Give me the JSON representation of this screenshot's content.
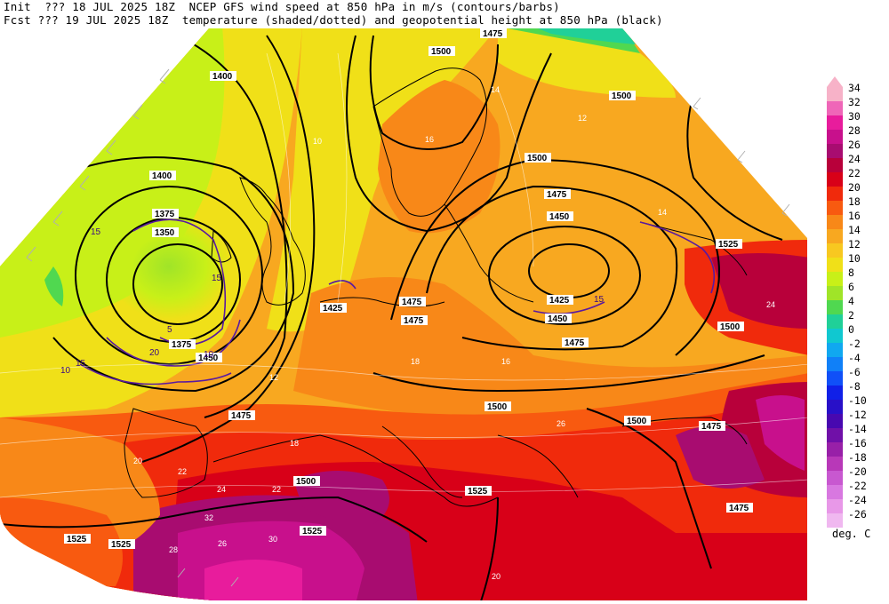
{
  "header": {
    "line1_left": "Init  ??? 18 JUL 2025 18Z",
    "line1_right": "NCEP GFS wind speed at 850 hPa in m/s (contours/barbs)",
    "line2_left": "Fcst ??? 19 JUL 2025 18Z",
    "line2_right": "temperature (shaded/dotted) and geopotential height at 850 hPa (black)"
  },
  "colorbar": {
    "units": "deg. C",
    "levels": [
      {
        "label": "34",
        "color": "#f7b2c8"
      },
      {
        "label": "32",
        "color": "#ef66b8"
      },
      {
        "label": "30",
        "color": "#e81c9c"
      },
      {
        "label": "28",
        "color": "#c8108c"
      },
      {
        "label": "26",
        "color": "#a80c70"
      },
      {
        "label": "24",
        "color": "#b8003a"
      },
      {
        "label": "22",
        "color": "#d80018"
      },
      {
        "label": "20",
        "color": "#f02a0c"
      },
      {
        "label": "18",
        "color": "#f85a10"
      },
      {
        "label": "16",
        "color": "#f88818"
      },
      {
        "label": "14",
        "color": "#f8a820"
      },
      {
        "label": "12",
        "color": "#f8c820"
      },
      {
        "label": "10",
        "color": "#f0e018"
      },
      {
        "label": "8",
        "color": "#c8f018"
      },
      {
        "label": "6",
        "color": "#a0e428"
      },
      {
        "label": "4",
        "color": "#50d850"
      },
      {
        "label": "2",
        "color": "#20d098"
      },
      {
        "label": "0",
        "color": "#10c8d0"
      },
      {
        "label": "-2",
        "color": "#10a8f0"
      },
      {
        "label": "-4",
        "color": "#1080f8"
      },
      {
        "label": "-6",
        "color": "#1050f8"
      },
      {
        "label": "-8",
        "color": "#1020e8"
      },
      {
        "label": "-10",
        "color": "#2810c8"
      },
      {
        "label": "-12",
        "color": "#4808b0"
      },
      {
        "label": "-14",
        "color": "#7010a8"
      },
      {
        "label": "-16",
        "color": "#9820a8"
      },
      {
        "label": "-18",
        "color": "#b838b8"
      },
      {
        "label": "-20",
        "color": "#c858d0"
      },
      {
        "label": "-22",
        "color": "#d878e0"
      },
      {
        "label": "-24",
        "color": "#e898e8"
      },
      {
        "label": "-26",
        "color": "#f0b8f0"
      }
    ]
  },
  "map": {
    "height_labels": [
      {
        "text": "1400"
      },
      {
        "text": "1400"
      },
      {
        "text": "1375"
      },
      {
        "text": "1350"
      },
      {
        "text": "1375"
      },
      {
        "text": "1450"
      },
      {
        "text": "1475"
      },
      {
        "text": "1500"
      },
      {
        "text": "1500"
      },
      {
        "text": "1500"
      },
      {
        "text": "1475"
      },
      {
        "text": "1450"
      },
      {
        "text": "1425"
      },
      {
        "text": "1425"
      },
      {
        "text": "1475"
      },
      {
        "text": "1475"
      },
      {
        "text": "1475"
      },
      {
        "text": "1500"
      },
      {
        "text": "1500"
      },
      {
        "text": "1525"
      },
      {
        "text": "1500"
      },
      {
        "text": "1525"
      },
      {
        "text": "1525"
      },
      {
        "text": "1525"
      },
      {
        "text": "1525"
      },
      {
        "text": "1475"
      },
      {
        "text": "1475"
      },
      {
        "text": "1500"
      },
      {
        "text": "1450"
      },
      {
        "text": "1475"
      }
    ],
    "wind_labels": [
      {
        "text": "15"
      },
      {
        "text": "10"
      },
      {
        "text": "20"
      },
      {
        "text": "15"
      },
      {
        "text": "15"
      },
      {
        "text": "15"
      },
      {
        "text": "10"
      },
      {
        "text": "5"
      }
    ],
    "temp_labels": [
      {
        "text": "14"
      },
      {
        "text": "12"
      },
      {
        "text": "16"
      },
      {
        "text": "18"
      },
      {
        "text": "12"
      },
      {
        "text": "20"
      },
      {
        "text": "22"
      },
      {
        "text": "24"
      },
      {
        "text": "22"
      },
      {
        "text": "26"
      },
      {
        "text": "28"
      },
      {
        "text": "30"
      },
      {
        "text": "32"
      },
      {
        "text": "26"
      },
      {
        "text": "24"
      },
      {
        "text": "20"
      },
      {
        "text": "18"
      },
      {
        "text": "16"
      },
      {
        "text": "14"
      },
      {
        "text": "10"
      }
    ]
  }
}
